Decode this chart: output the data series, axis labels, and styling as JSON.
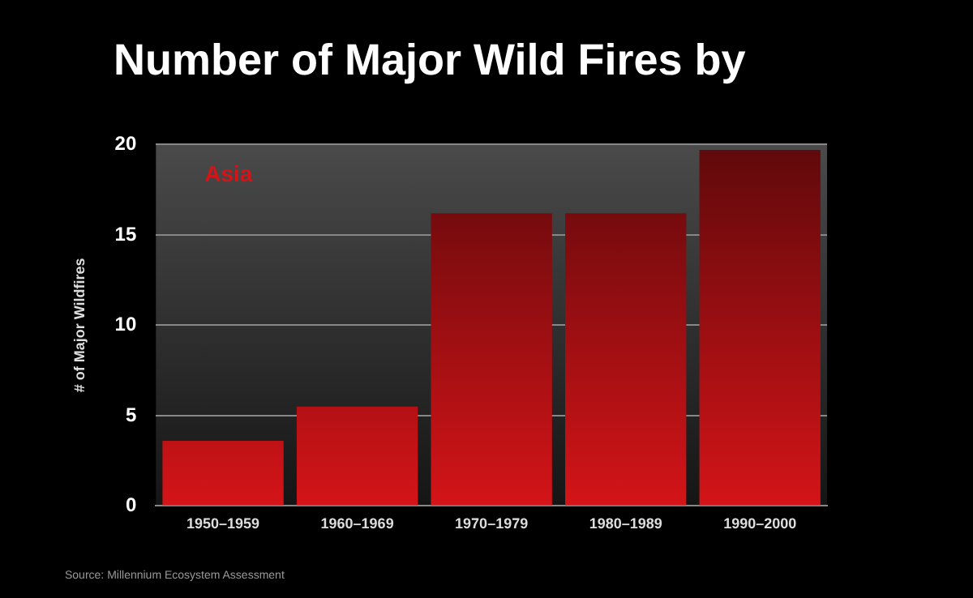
{
  "chart_data": {
    "type": "bar",
    "title": "Number of Major Wild Fires by",
    "ylabel": "# of Major Wildfires",
    "categories": [
      "1950–1959",
      "1960–1969",
      "1970–1979",
      "1980–1989",
      "1990–2000"
    ],
    "values": [
      3.6,
      5.5,
      16.2,
      16.2,
      19.7
    ],
    "color": "#d41418",
    "ylim": [
      0,
      20
    ],
    "yticks": [
      0,
      5,
      10,
      15,
      20
    ],
    "grid": "y",
    "annotations": [
      "Asia",
      "Source: Millennium Ecosystem Assessment"
    ]
  }
}
